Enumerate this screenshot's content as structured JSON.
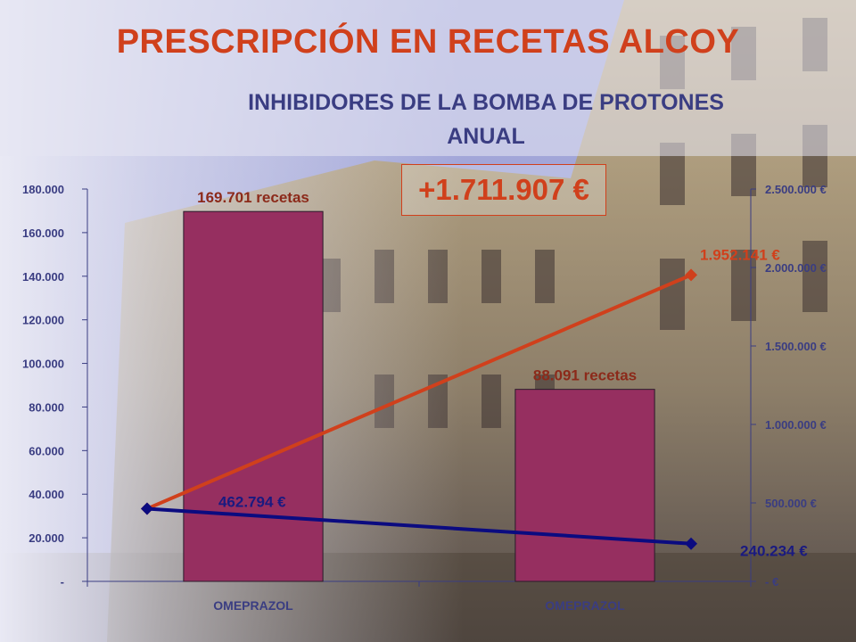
{
  "header": {
    "title": "PRESCRIPCIÓN EN RECETAS ALCOY",
    "subtitle_line1": "INHIBIDORES DE LA BOMBA DE PROTONES",
    "subtitle_line2": "ANUAL"
  },
  "difference_label": "+1.711.907 €",
  "colors": {
    "bar": "#962f60",
    "line_cost_high": "#d0401c",
    "line_cost_low": "#0b0b80",
    "axis": "#3a3d82"
  },
  "chart_data": {
    "type": "bar",
    "categories": [
      "OMEPRAZOL",
      "OMEPRAZOL"
    ],
    "bars": {
      "values": [
        169701,
        88091
      ],
      "labels": [
        "169.701 recetas",
        "88.091 recetas"
      ]
    },
    "lines": [
      {
        "axis": "right",
        "color": "#d0401c",
        "points": [
          {
            "x": 0,
            "y": 462794
          },
          {
            "x": 1,
            "y": 1952141
          }
        ],
        "point_label": "1.952.141 €"
      },
      {
        "axis": "right",
        "color": "#0b0b80",
        "points": [
          {
            "x": 0,
            "y": 462794
          },
          {
            "x": 1,
            "y": 240234
          }
        ],
        "point_labels": [
          "462.794 €",
          "240.234 €"
        ]
      }
    ],
    "y_left": {
      "range": [
        0,
        180000
      ],
      "ticks": [
        0,
        20000,
        40000,
        60000,
        80000,
        100000,
        120000,
        140000,
        160000,
        180000
      ],
      "tick_labels": [
        "-",
        "20.000",
        "40.000",
        "60.000",
        "80.000",
        "100.000",
        "120.000",
        "140.000",
        "160.000",
        "180.000"
      ]
    },
    "y_right": {
      "range": [
        0,
        2500000
      ],
      "ticks": [
        0,
        500000,
        1000000,
        1500000,
        2000000,
        2500000
      ],
      "tick_labels": [
        "- €",
        "500.000 €",
        "1.000.000 €",
        "1.500.000 €",
        "2.000.000 €",
        "2.500.000 €"
      ]
    },
    "grid": false,
    "legend": "none"
  }
}
